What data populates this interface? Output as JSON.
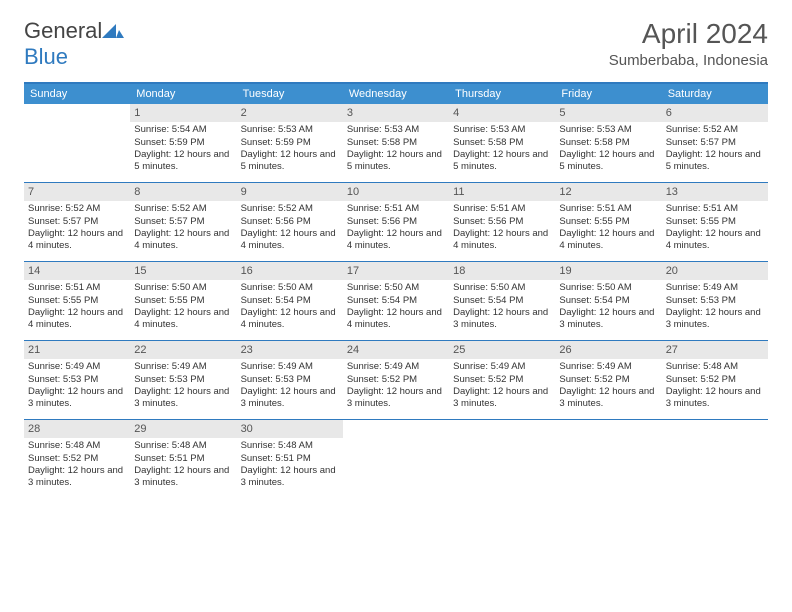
{
  "brand": {
    "part1": "General",
    "part2": "Blue"
  },
  "title": "April 2024",
  "location": "Sumberbaba, Indonesia",
  "colors": {
    "header_bg": "#3d8fcf",
    "border": "#2f7abf",
    "daynum_bg": "#e8e8e8",
    "text": "#333333",
    "title": "#555555"
  },
  "dow": [
    "Sunday",
    "Monday",
    "Tuesday",
    "Wednesday",
    "Thursday",
    "Friday",
    "Saturday"
  ],
  "weeks": [
    [
      {
        "n": "",
        "sr": "",
        "ss": "",
        "dl": ""
      },
      {
        "n": "1",
        "sr": "5:54 AM",
        "ss": "5:59 PM",
        "dl": "12 hours and 5 minutes."
      },
      {
        "n": "2",
        "sr": "5:53 AM",
        "ss": "5:59 PM",
        "dl": "12 hours and 5 minutes."
      },
      {
        "n": "3",
        "sr": "5:53 AM",
        "ss": "5:58 PM",
        "dl": "12 hours and 5 minutes."
      },
      {
        "n": "4",
        "sr": "5:53 AM",
        "ss": "5:58 PM",
        "dl": "12 hours and 5 minutes."
      },
      {
        "n": "5",
        "sr": "5:53 AM",
        "ss": "5:58 PM",
        "dl": "12 hours and 5 minutes."
      },
      {
        "n": "6",
        "sr": "5:52 AM",
        "ss": "5:57 PM",
        "dl": "12 hours and 5 minutes."
      }
    ],
    [
      {
        "n": "7",
        "sr": "5:52 AM",
        "ss": "5:57 PM",
        "dl": "12 hours and 4 minutes."
      },
      {
        "n": "8",
        "sr": "5:52 AM",
        "ss": "5:57 PM",
        "dl": "12 hours and 4 minutes."
      },
      {
        "n": "9",
        "sr": "5:52 AM",
        "ss": "5:56 PM",
        "dl": "12 hours and 4 minutes."
      },
      {
        "n": "10",
        "sr": "5:51 AM",
        "ss": "5:56 PM",
        "dl": "12 hours and 4 minutes."
      },
      {
        "n": "11",
        "sr": "5:51 AM",
        "ss": "5:56 PM",
        "dl": "12 hours and 4 minutes."
      },
      {
        "n": "12",
        "sr": "5:51 AM",
        "ss": "5:55 PM",
        "dl": "12 hours and 4 minutes."
      },
      {
        "n": "13",
        "sr": "5:51 AM",
        "ss": "5:55 PM",
        "dl": "12 hours and 4 minutes."
      }
    ],
    [
      {
        "n": "14",
        "sr": "5:51 AM",
        "ss": "5:55 PM",
        "dl": "12 hours and 4 minutes."
      },
      {
        "n": "15",
        "sr": "5:50 AM",
        "ss": "5:55 PM",
        "dl": "12 hours and 4 minutes."
      },
      {
        "n": "16",
        "sr": "5:50 AM",
        "ss": "5:54 PM",
        "dl": "12 hours and 4 minutes."
      },
      {
        "n": "17",
        "sr": "5:50 AM",
        "ss": "5:54 PM",
        "dl": "12 hours and 4 minutes."
      },
      {
        "n": "18",
        "sr": "5:50 AM",
        "ss": "5:54 PM",
        "dl": "12 hours and 3 minutes."
      },
      {
        "n": "19",
        "sr": "5:50 AM",
        "ss": "5:54 PM",
        "dl": "12 hours and 3 minutes."
      },
      {
        "n": "20",
        "sr": "5:49 AM",
        "ss": "5:53 PM",
        "dl": "12 hours and 3 minutes."
      }
    ],
    [
      {
        "n": "21",
        "sr": "5:49 AM",
        "ss": "5:53 PM",
        "dl": "12 hours and 3 minutes."
      },
      {
        "n": "22",
        "sr": "5:49 AM",
        "ss": "5:53 PM",
        "dl": "12 hours and 3 minutes."
      },
      {
        "n": "23",
        "sr": "5:49 AM",
        "ss": "5:53 PM",
        "dl": "12 hours and 3 minutes."
      },
      {
        "n": "24",
        "sr": "5:49 AM",
        "ss": "5:52 PM",
        "dl": "12 hours and 3 minutes."
      },
      {
        "n": "25",
        "sr": "5:49 AM",
        "ss": "5:52 PM",
        "dl": "12 hours and 3 minutes."
      },
      {
        "n": "26",
        "sr": "5:49 AM",
        "ss": "5:52 PM",
        "dl": "12 hours and 3 minutes."
      },
      {
        "n": "27",
        "sr": "5:48 AM",
        "ss": "5:52 PM",
        "dl": "12 hours and 3 minutes."
      }
    ],
    [
      {
        "n": "28",
        "sr": "5:48 AM",
        "ss": "5:52 PM",
        "dl": "12 hours and 3 minutes."
      },
      {
        "n": "29",
        "sr": "5:48 AM",
        "ss": "5:51 PM",
        "dl": "12 hours and 3 minutes."
      },
      {
        "n": "30",
        "sr": "5:48 AM",
        "ss": "5:51 PM",
        "dl": "12 hours and 3 minutes."
      },
      {
        "n": "",
        "sr": "",
        "ss": "",
        "dl": ""
      },
      {
        "n": "",
        "sr": "",
        "ss": "",
        "dl": ""
      },
      {
        "n": "",
        "sr": "",
        "ss": "",
        "dl": ""
      },
      {
        "n": "",
        "sr": "",
        "ss": "",
        "dl": ""
      }
    ]
  ],
  "labels": {
    "sunrise": "Sunrise: ",
    "sunset": "Sunset: ",
    "daylight": "Daylight: "
  }
}
